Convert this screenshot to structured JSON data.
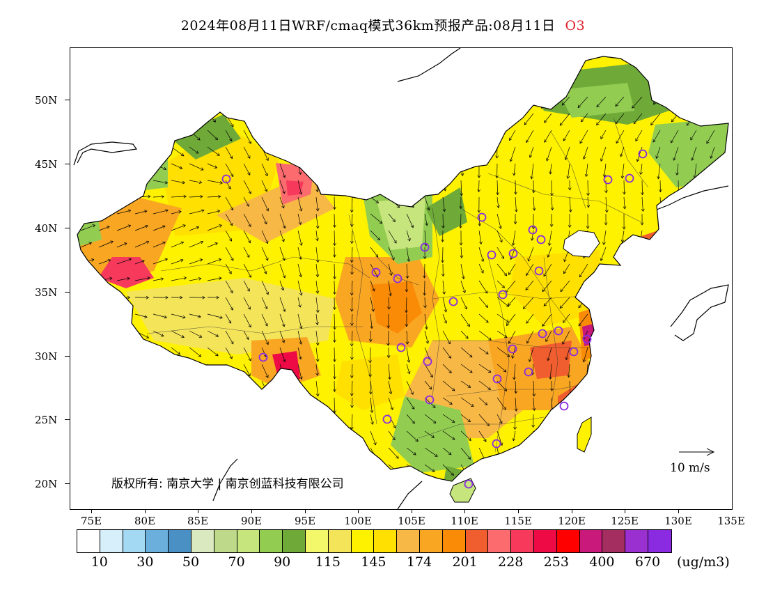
{
  "header": {
    "title": "2024年08月11日WRF/cmaq模式36km预报产品:08月11日",
    "species": "O3",
    "species_color": "#e0202a"
  },
  "axes": {
    "lat_labels": [
      "50N",
      "45N",
      "40N",
      "35N",
      "30N",
      "25N",
      "20N"
    ],
    "lon_labels": [
      "75E",
      "80E",
      "85E",
      "90E",
      "95E",
      "100E",
      "105E",
      "110E",
      "115E",
      "120E",
      "125E",
      "130E",
      "135E"
    ]
  },
  "colorbar": {
    "colors": [
      "#ffffff",
      "#d6effa",
      "#a3d9f3",
      "#6bb0dc",
      "#4a90c4",
      "#dbe9c0",
      "#bfd98a",
      "#c6e57c",
      "#92cd52",
      "#6faa39",
      "#f3f76a",
      "#f4e45a",
      "#fff200",
      "#ffe000",
      "#f8b846",
      "#f9a623",
      "#fa8b07",
      "#f05d2e",
      "#fc6b6e",
      "#f73a5c",
      "#ee0a45",
      "#ff0000",
      "#c9197a",
      "#a52e61",
      "#9b30d0",
      "#8a2be2"
    ],
    "labels": [
      "10",
      "30",
      "50",
      "70",
      "90",
      "115",
      "145",
      "174",
      "201",
      "228",
      "253",
      "400",
      "670"
    ],
    "unit": "(ug/m3)"
  },
  "annotations": {
    "copyright": "版权所有: 南京大学 | 南京创蓝科技有限公司",
    "wind_reference": "10 m/s"
  },
  "map": {
    "variable": "O3",
    "wind_vectors": true,
    "station_marker_color": "#8a2be2"
  }
}
